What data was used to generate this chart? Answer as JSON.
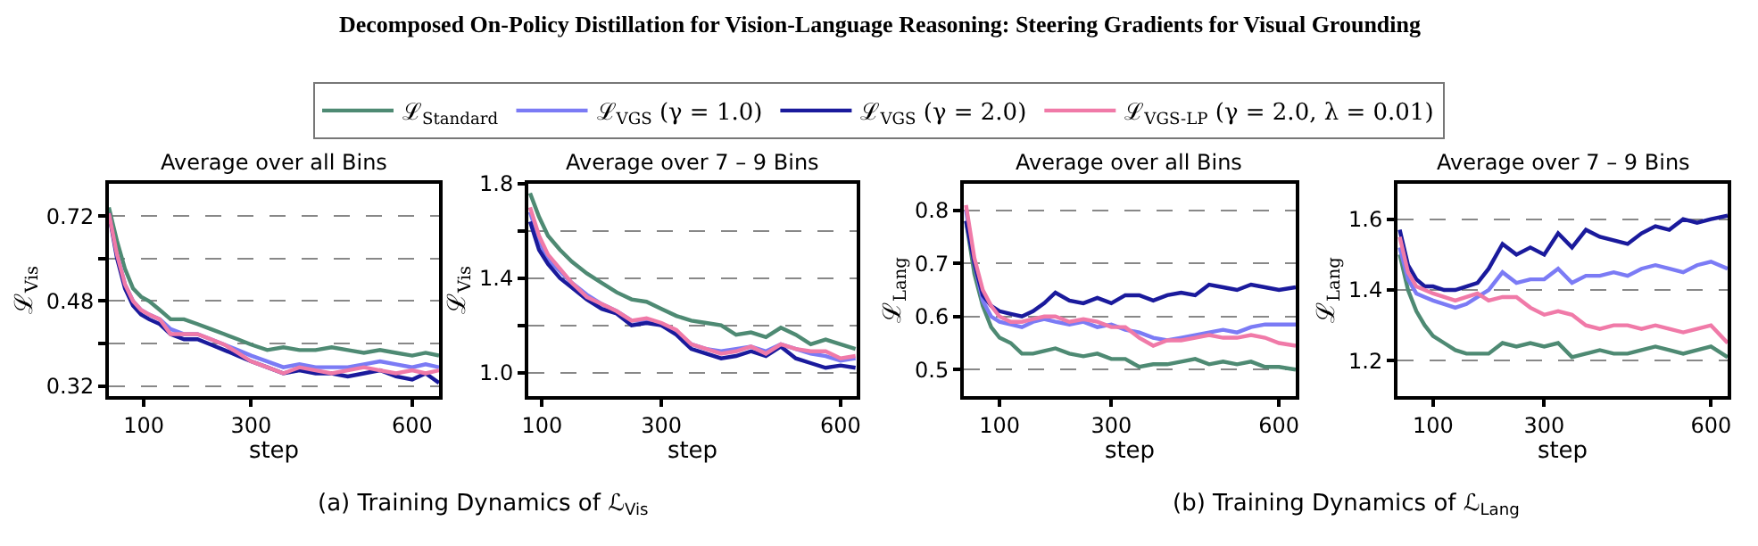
{
  "chart_data": [
    {
      "type": "line",
      "title": "Average over all Bins",
      "xlabel": "step",
      "ylabel": "ℒ$_{Vis}$",
      "log": true,
      "legend": "top",
      "grid": "y",
      "annotations": [
        "Decomposed On-Policy Distillation for Vision-Language Reasoning: Steering Gradients for Visual Grounding",
        "(a) Training Dynamics of ℒ$_{Vis}$"
      ],
      "xlim": [
        35,
        650
      ],
      "xticks": [
        100,
        300,
        600
      ],
      "ylim": [
        0.305,
        0.84
      ],
      "yticks": [
        0.32,
        {
          "value": 0.392,
          "label": null
        },
        0.48,
        {
          "value": 0.588,
          "label": null
        },
        0.72
      ],
      "x": [
        35,
        50,
        65,
        80,
        95,
        110,
        130,
        150,
        175,
        200,
        225,
        250,
        275,
        300,
        330,
        360,
        390,
        420,
        450,
        480,
        510,
        540,
        570,
        600,
        625,
        650
      ],
      "series": [
        {
          "name": "ℒ$_{Standard}$",
          "color": "#4e8a73",
          "values": [
            0.75,
            0.64,
            0.56,
            0.51,
            0.49,
            0.48,
            0.46,
            0.44,
            0.44,
            0.43,
            0.42,
            0.41,
            0.4,
            0.39,
            0.38,
            0.385,
            0.38,
            0.38,
            0.385,
            0.38,
            0.375,
            0.38,
            0.375,
            0.37,
            0.375,
            0.37
          ]
        },
        {
          "name": "ℒ$_{VGS}$ (γ = 1.0)",
          "color": "#7b7bf5",
          "values": [
            null,
            0.6,
            0.52,
            0.48,
            0.46,
            0.45,
            0.44,
            0.42,
            0.41,
            0.41,
            0.4,
            0.39,
            0.38,
            0.37,
            0.36,
            0.35,
            0.355,
            0.35,
            0.35,
            0.35,
            0.355,
            0.36,
            0.355,
            0.35,
            0.355,
            0.35
          ]
        },
        {
          "name": "ℒ$_{VGS}$ (γ = 2.0)",
          "color": "#1a1a9c",
          "values": [
            0.73,
            0.59,
            0.51,
            0.47,
            0.45,
            0.44,
            0.43,
            0.41,
            0.4,
            0.4,
            0.39,
            0.38,
            0.37,
            0.36,
            0.35,
            0.34,
            0.345,
            0.34,
            0.34,
            0.335,
            0.34,
            0.345,
            0.335,
            0.33,
            0.34,
            0.325
          ]
        },
        {
          "name": "ℒ$_{VGS-LP}$ (γ = 2.0, λ = 0.01)",
          "color": "#f07aa8",
          "values": [
            0.73,
            0.6,
            0.52,
            0.48,
            0.46,
            0.45,
            0.44,
            0.41,
            0.41,
            0.41,
            0.4,
            0.39,
            0.375,
            0.36,
            0.35,
            0.34,
            0.35,
            0.345,
            0.34,
            0.345,
            0.35,
            0.345,
            0.34,
            0.345,
            0.34,
            0.345
          ]
        }
      ]
    },
    {
      "type": "line",
      "title": "Average over 7 – 9 Bins",
      "xlabel": "step",
      "ylabel": "ℒ$_{Vis}$",
      "grid": "y",
      "xlim": [
        77,
        627
      ],
      "xticks": [
        100,
        300,
        600
      ],
      "ylim": [
        0.9,
        1.8
      ],
      "yticks": [
        {
          "value": 1.0,
          "label": "1.0"
        },
        {
          "value": 1.2,
          "label": null
        },
        1.4,
        {
          "value": 1.6,
          "label": null
        },
        1.8
      ],
      "x": [
        80,
        95,
        110,
        130,
        150,
        175,
        200,
        225,
        250,
        275,
        300,
        325,
        350,
        375,
        400,
        425,
        450,
        475,
        500,
        525,
        550,
        575,
        600,
        625
      ],
      "series": [
        {
          "name": "ℒ$_{Standard}$",
          "color": "#4e8a73",
          "values": [
            1.76,
            1.66,
            1.58,
            1.52,
            1.47,
            1.42,
            1.38,
            1.34,
            1.31,
            1.3,
            1.27,
            1.24,
            1.22,
            1.21,
            1.2,
            1.16,
            1.17,
            1.15,
            1.19,
            1.16,
            1.12,
            1.14,
            1.12,
            1.1
          ]
        },
        {
          "name": "ℒ$_{VGS}$ (γ = 1.0)",
          "color": "#7b7bf5",
          "values": [
            1.68,
            1.56,
            1.48,
            1.43,
            1.38,
            1.33,
            1.29,
            1.26,
            1.22,
            1.22,
            1.2,
            1.17,
            1.12,
            1.1,
            1.09,
            1.1,
            1.11,
            1.09,
            1.12,
            1.1,
            1.08,
            1.07,
            1.05,
            1.06
          ]
        },
        {
          "name": "ℒ$_{VGS}$ (γ = 2.0)",
          "color": "#1a1a9c",
          "values": [
            1.64,
            1.52,
            1.46,
            1.4,
            1.36,
            1.31,
            1.27,
            1.25,
            1.2,
            1.21,
            1.2,
            1.16,
            1.1,
            1.08,
            1.06,
            1.07,
            1.09,
            1.07,
            1.11,
            1.06,
            1.04,
            1.02,
            1.03,
            1.02
          ]
        },
        {
          "name": "ℒ$_{VGS-LP}$ (γ = 2.0, λ = 0.01)",
          "color": "#f07aa8",
          "values": [
            1.7,
            1.58,
            1.5,
            1.44,
            1.38,
            1.32,
            1.29,
            1.26,
            1.22,
            1.23,
            1.21,
            1.18,
            1.12,
            1.1,
            1.08,
            1.09,
            1.11,
            1.08,
            1.12,
            1.1,
            1.09,
            1.09,
            1.06,
            1.07
          ]
        }
      ]
    },
    {
      "type": "line",
      "title": "Average over all Bins",
      "xlabel": "step",
      "ylabel": "ℒ$_{Lang}$",
      "grid": "y",
      "annotations": [
        "(b) Training Dynamics of ℒ$_{Lang}$"
      ],
      "xlim": [
        36,
        630
      ],
      "xticks": [
        100,
        300,
        600
      ],
      "ylim": [
        0.45,
        0.85
      ],
      "yticks": [
        0.5,
        0.6,
        0.7,
        0.8
      ],
      "x": [
        40,
        55,
        70,
        85,
        100,
        120,
        140,
        160,
        180,
        200,
        225,
        250,
        275,
        300,
        325,
        350,
        375,
        400,
        425,
        450,
        475,
        500,
        525,
        550,
        575,
        600,
        630
      ],
      "series": [
        {
          "name": "ℒ$_{Standard}$",
          "color": "#4e8a73",
          "values": [
            0.78,
            0.68,
            0.62,
            0.58,
            0.56,
            0.55,
            0.53,
            0.53,
            0.535,
            0.54,
            0.53,
            0.525,
            0.53,
            0.52,
            0.52,
            0.505,
            0.51,
            0.51,
            0.515,
            0.52,
            0.51,
            0.515,
            0.51,
            0.515,
            0.505,
            0.505,
            0.5
          ]
        },
        {
          "name": "ℒ$_{VGS}$ (γ = 1.0)",
          "color": "#7b7bf5",
          "values": [
            0.8,
            0.7,
            0.63,
            0.6,
            0.59,
            0.585,
            0.58,
            0.59,
            0.595,
            0.59,
            0.585,
            0.59,
            0.58,
            0.585,
            0.575,
            0.57,
            0.56,
            0.555,
            0.56,
            0.565,
            0.57,
            0.575,
            0.57,
            0.58,
            0.585,
            0.585,
            0.585
          ]
        },
        {
          "name": "ℒ$_{VGS}$ (γ = 2.0)",
          "color": "#1a1a9c",
          "values": [
            0.78,
            0.7,
            0.64,
            0.62,
            0.61,
            0.605,
            0.6,
            0.61,
            0.625,
            0.645,
            0.63,
            0.625,
            0.635,
            0.625,
            0.64,
            0.64,
            0.63,
            0.64,
            0.645,
            0.64,
            0.66,
            0.655,
            0.65,
            0.66,
            0.655,
            0.65,
            0.655
          ]
        },
        {
          "name": "ℒ$_{VGS-LP}$ (γ = 2.0, λ = 0.01)",
          "color": "#f07aa8",
          "values": [
            0.81,
            0.71,
            0.65,
            0.62,
            0.6,
            0.59,
            0.59,
            0.595,
            0.6,
            0.6,
            0.59,
            0.595,
            0.59,
            0.58,
            0.58,
            0.56,
            0.545,
            0.555,
            0.555,
            0.56,
            0.565,
            0.56,
            0.56,
            0.565,
            0.56,
            0.55,
            0.545
          ]
        }
      ]
    },
    {
      "type": "line",
      "title": "Average over 7 – 9 Bins",
      "xlabel": "step",
      "ylabel": "ℒ$_{Lang}$",
      "grid": "y",
      "xlim": [
        36,
        630
      ],
      "xticks": [
        100,
        300,
        600
      ],
      "ylim": [
        1.1,
        1.7
      ],
      "yticks": [
        1.2,
        1.4,
        1.6
      ],
      "x": [
        40,
        55,
        70,
        85,
        100,
        120,
        140,
        160,
        180,
        200,
        225,
        250,
        275,
        300,
        325,
        350,
        375,
        400,
        425,
        450,
        475,
        500,
        525,
        550,
        575,
        600,
        630
      ],
      "series": [
        {
          "name": "ℒ$_{Standard}$",
          "color": "#4e8a73",
          "values": [
            1.5,
            1.4,
            1.34,
            1.3,
            1.27,
            1.25,
            1.23,
            1.22,
            1.22,
            1.22,
            1.25,
            1.24,
            1.25,
            1.24,
            1.25,
            1.21,
            1.22,
            1.23,
            1.22,
            1.22,
            1.23,
            1.24,
            1.23,
            1.22,
            1.23,
            1.24,
            1.21
          ]
        },
        {
          "name": "ℒ$_{VGS}$ (γ = 1.0)",
          "color": "#7b7bf5",
          "values": [
            1.52,
            1.43,
            1.39,
            1.38,
            1.37,
            1.36,
            1.35,
            1.36,
            1.38,
            1.4,
            1.45,
            1.42,
            1.43,
            1.43,
            1.46,
            1.42,
            1.44,
            1.44,
            1.45,
            1.44,
            1.46,
            1.47,
            1.46,
            1.45,
            1.47,
            1.48,
            1.46
          ]
        },
        {
          "name": "ℒ$_{VGS}$ (γ = 2.0)",
          "color": "#1a1a9c",
          "values": [
            1.57,
            1.47,
            1.43,
            1.41,
            1.41,
            1.4,
            1.4,
            1.41,
            1.42,
            1.46,
            1.53,
            1.5,
            1.52,
            1.5,
            1.56,
            1.52,
            1.57,
            1.55,
            1.54,
            1.53,
            1.56,
            1.58,
            1.57,
            1.6,
            1.59,
            1.6,
            1.61
          ]
        },
        {
          "name": "ℒ$_{VGS-LP}$ (γ = 2.0, λ = 0.01)",
          "color": "#f07aa8",
          "values": [
            1.55,
            1.45,
            1.41,
            1.4,
            1.39,
            1.38,
            1.37,
            1.38,
            1.39,
            1.37,
            1.38,
            1.38,
            1.35,
            1.33,
            1.34,
            1.33,
            1.3,
            1.29,
            1.3,
            1.3,
            1.29,
            1.3,
            1.29,
            1.28,
            1.29,
            1.3,
            1.25
          ]
        }
      ]
    }
  ]
}
